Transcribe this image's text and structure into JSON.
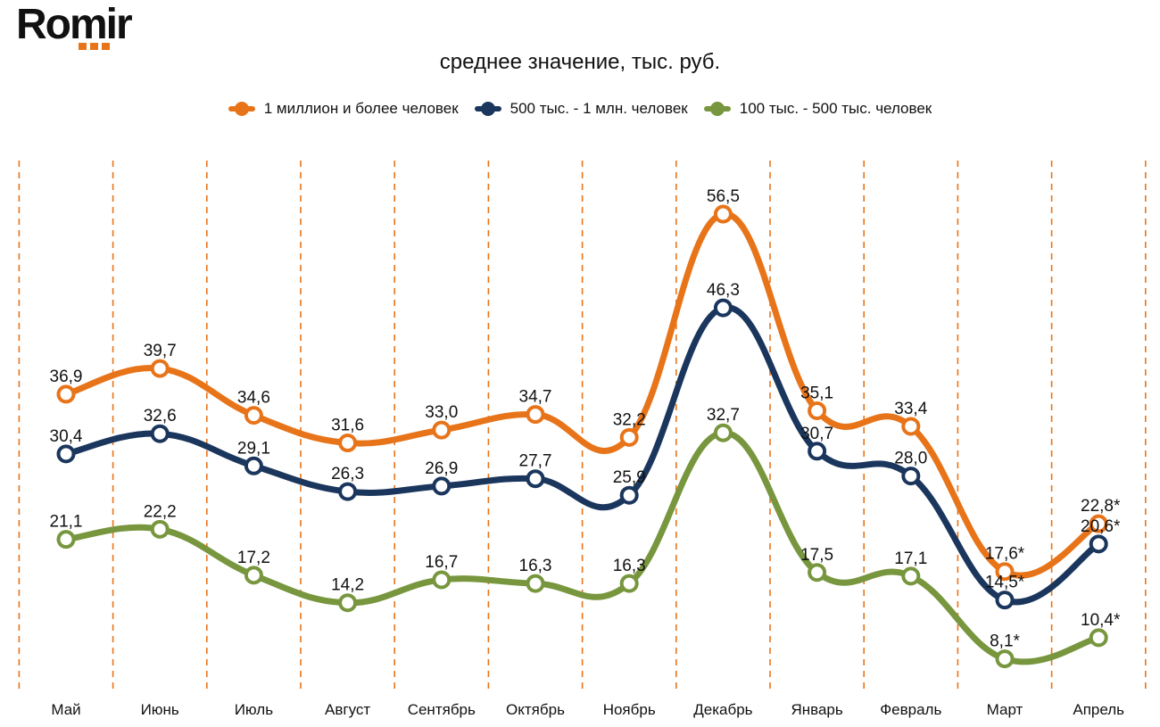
{
  "brand": {
    "name": "Romir",
    "accent": "#E8741A"
  },
  "chart_data": {
    "type": "line",
    "title": "среднее значение, тыс. руб.",
    "xlabel": "",
    "ylabel": "",
    "ylim": [
      0,
      62
    ],
    "grid": "vertical dashed",
    "legend_position": "top-center",
    "categories": [
      "Май",
      "Июнь",
      "Июль",
      "Август",
      "Сентябрь",
      "Октябрь",
      "Ноябрь",
      "Декабрь",
      "Январь",
      "Февраль",
      "Март",
      "Апрель"
    ],
    "series": [
      {
        "name": "1 миллион и более человек",
        "color": "#E8741A",
        "values": [
          36.9,
          39.7,
          34.6,
          31.6,
          33.0,
          34.7,
          32.2,
          56.5,
          35.1,
          33.4,
          17.6,
          22.8
        ],
        "labels": [
          "36,9",
          "39,7",
          "34,6",
          "31,6",
          "33,0",
          "34,7",
          "32,2",
          "56,5",
          "35,1",
          "33,4",
          "17,6*",
          "22,8*"
        ]
      },
      {
        "name": "500 тыс. - 1 млн. человек",
        "color": "#1B365D",
        "values": [
          30.4,
          32.6,
          29.1,
          26.3,
          26.9,
          27.7,
          25.9,
          46.3,
          30.7,
          28.0,
          14.5,
          20.6
        ],
        "labels": [
          "30,4",
          "32,6",
          "29,1",
          "26,3",
          "26,9",
          "27,7",
          "25,9",
          "46,3",
          "30,7",
          "28,0",
          "14,5*",
          "20,6*"
        ]
      },
      {
        "name": "100 тыс. - 500 тыс. человек",
        "color": "#77963E",
        "values": [
          21.1,
          22.2,
          17.2,
          14.2,
          16.7,
          16.3,
          16.3,
          32.7,
          17.5,
          17.1,
          8.1,
          10.4
        ],
        "labels": [
          "21,1",
          "22,2",
          "17,2",
          "14,2",
          "16,7",
          "16,3",
          "16,3",
          "32,7",
          "17,5",
          "17,1",
          "8,1*",
          "10,4*"
        ]
      }
    ]
  }
}
